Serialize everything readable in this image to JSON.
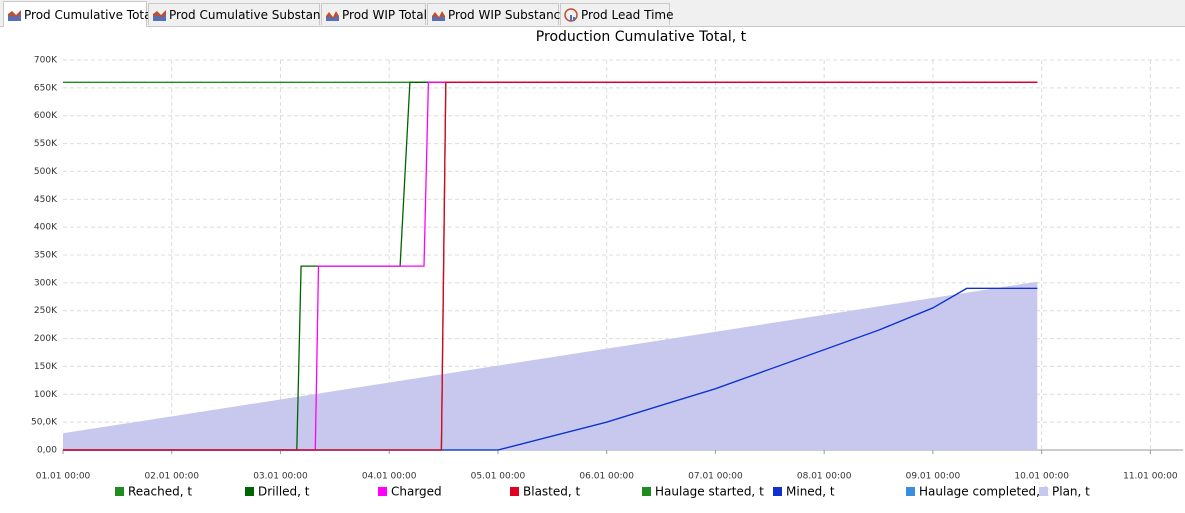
{
  "tabs": [
    "Prod Cumulative Total",
    "Prod Cumulative Substance",
    "Prod WIP Total",
    "Prod WIP Substance",
    "Prod Lead Time"
  ],
  "chart_data": {
    "type": "line",
    "title": "Production Cumulative Total, t",
    "xlim": [
      0,
      10.3
    ],
    "xticks": [
      {
        "value": 0,
        "label": "01.01 00:00"
      },
      {
        "value": 1,
        "label": "02.01 00:00"
      },
      {
        "value": 2,
        "label": "03.01 00:00"
      },
      {
        "value": 3,
        "label": "04.01 00:00"
      },
      {
        "value": 4,
        "label": "05.01 00:00"
      },
      {
        "value": 5,
        "label": "06.01 00:00"
      },
      {
        "value": 6,
        "label": "07.01 00:00"
      },
      {
        "value": 7,
        "label": "08.01 00:00"
      },
      {
        "value": 8,
        "label": "09.01 00:00"
      },
      {
        "value": 9,
        "label": "10.01 00:00"
      },
      {
        "value": 10,
        "label": "11.01 00:00"
      }
    ],
    "ylim": [
      0,
      700000
    ],
    "yticks": [
      {
        "value": 0,
        "label": "0,00"
      },
      {
        "value": 50000,
        "label": "50,0K"
      },
      {
        "value": 100000,
        "label": "100K"
      },
      {
        "value": 150000,
        "label": "150K"
      },
      {
        "value": 200000,
        "label": "200K"
      },
      {
        "value": 250000,
        "label": "250K"
      },
      {
        "value": 300000,
        "label": "300K"
      },
      {
        "value": 350000,
        "label": "350K"
      },
      {
        "value": 400000,
        "label": "400K"
      },
      {
        "value": 450000,
        "label": "450K"
      },
      {
        "value": 500000,
        "label": "500K"
      },
      {
        "value": 550000,
        "label": "550K"
      },
      {
        "value": 600000,
        "label": "600K"
      },
      {
        "value": 650000,
        "label": "650K"
      },
      {
        "value": 700000,
        "label": "700K"
      }
    ],
    "grid": true,
    "legend": "bottom",
    "series": [
      {
        "name": "Reached, t",
        "color": "#1e8c1e",
        "x": [
          0,
          8.96
        ],
        "values": [
          660000,
          660000
        ]
      },
      {
        "name": "Drilled, t",
        "color": "#006400",
        "x": [
          0,
          2.15,
          2.19,
          3.1,
          3.19,
          8.96
        ],
        "values": [
          0,
          0,
          330000,
          330000,
          660000,
          660000
        ]
      },
      {
        "name": "Charged",
        "color": "#ff00ff",
        "x": [
          0,
          2.32,
          2.35,
          3.32,
          3.36,
          8.96
        ],
        "values": [
          0,
          0,
          330000,
          330000,
          660000,
          660000
        ]
      },
      {
        "name": "Blasted, t",
        "color": "#e00020",
        "x": [
          0,
          3.48,
          3.52,
          8.96
        ],
        "values": [
          0,
          0,
          660000,
          660000
        ]
      },
      {
        "name": "Haulage started, t",
        "color": "#1e8c1e",
        "x": [
          0,
          3.48,
          3.52,
          8.96
        ],
        "values": [
          0,
          0,
          660000,
          660000
        ]
      },
      {
        "name": "Mined, t",
        "color": "#1030d0",
        "x": [
          0,
          4.0,
          4.1,
          4.4,
          5.0,
          5.5,
          6.0,
          6.5,
          7.0,
          7.5,
          8.0,
          8.31,
          8.96
        ],
        "values": [
          0,
          0,
          5000,
          20000,
          50000,
          80000,
          110000,
          145000,
          180000,
          215000,
          255000,
          290000,
          290000
        ]
      },
      {
        "name": "Haulage completed, t",
        "color": "#3a8ee0",
        "x": [
          0,
          4.0,
          4.1,
          4.4,
          5.0,
          5.5,
          6.0,
          6.5,
          7.0,
          7.5,
          8.0,
          8.31,
          8.96
        ],
        "values": [
          0,
          0,
          5000,
          20000,
          50000,
          80000,
          110000,
          145000,
          180000,
          215000,
          255000,
          290000,
          290000
        ]
      },
      {
        "name": "Plan, t",
        "color": "#c8c8ee",
        "area": true,
        "x": [
          0,
          8.96
        ],
        "values": [
          30000,
          302000
        ]
      }
    ]
  }
}
